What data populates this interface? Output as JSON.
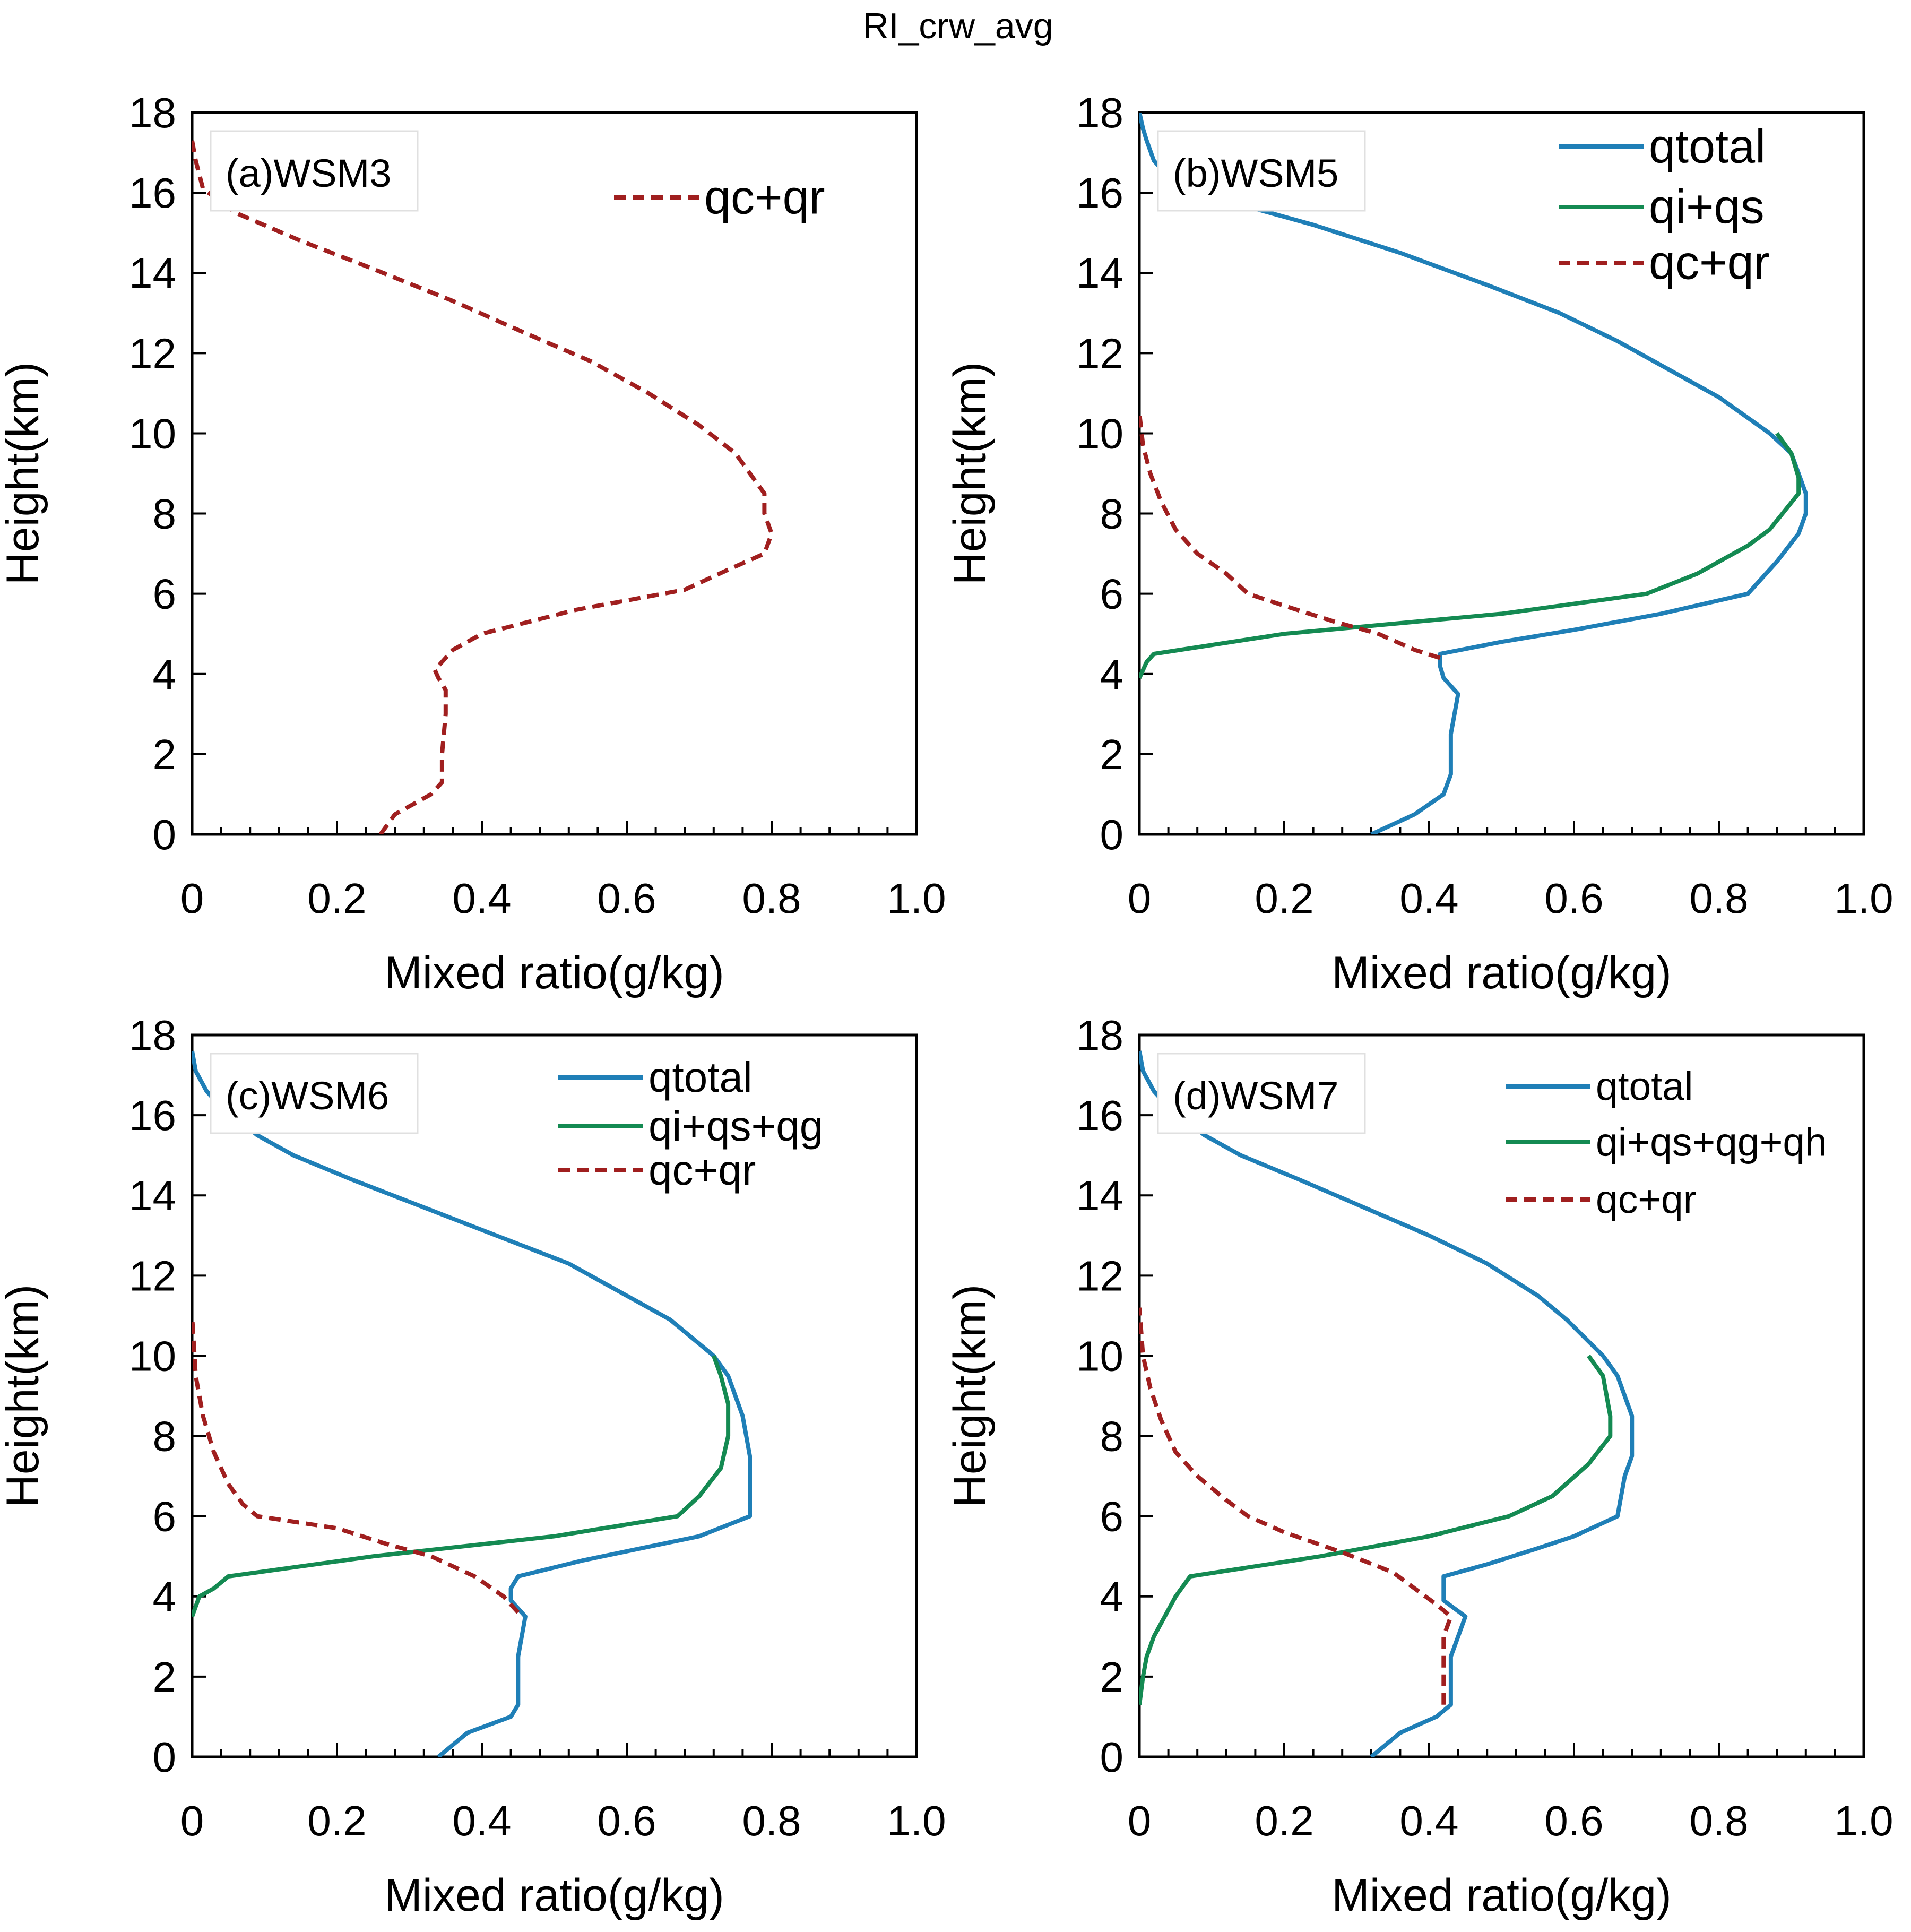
{
  "figure": {
    "title": "RI_crw_avg"
  },
  "colors": {
    "qtotal": "#1f7fb7",
    "ice": "#148a52",
    "liquid": "#a01f1f",
    "axis": "#000000"
  },
  "chart_data": [
    {
      "type": "line",
      "panel_label": "(a)WSM3",
      "xlabel": "Mixed ratio(g/kg)",
      "ylabel": "Height(km)",
      "xlim": [
        0,
        1.0
      ],
      "ylim": [
        0,
        18
      ],
      "xticks": [
        "0",
        "0.2",
        "0.4",
        "0.6",
        "0.8",
        "1.0"
      ],
      "yticks": [
        "0",
        "2",
        "4",
        "6",
        "8",
        "10",
        "12",
        "14",
        "16",
        "18"
      ],
      "legend_position": "top-right",
      "legend_font": 90,
      "series": [
        {
          "name": "qc+qr",
          "style": "dashed",
          "color_key": "liquid",
          "points": [
            [
              0.26,
              0
            ],
            [
              0.28,
              0.5
            ],
            [
              0.33,
              1.0
            ],
            [
              0.345,
              1.3
            ],
            [
              0.345,
              2
            ],
            [
              0.35,
              3
            ],
            [
              0.35,
              3.6
            ],
            [
              0.34,
              3.9
            ],
            [
              0.335,
              4.1
            ],
            [
              0.36,
              4.6
            ],
            [
              0.4,
              5.0
            ],
            [
              0.53,
              5.6
            ],
            [
              0.68,
              6.1
            ],
            [
              0.74,
              6.6
            ],
            [
              0.79,
              7.0
            ],
            [
              0.8,
              7.5
            ],
            [
              0.79,
              8
            ],
            [
              0.79,
              8.5
            ],
            [
              0.75,
              9.5
            ],
            [
              0.7,
              10.2
            ],
            [
              0.63,
              11.0
            ],
            [
              0.55,
              11.8
            ],
            [
              0.46,
              12.5
            ],
            [
              0.36,
              13.3
            ],
            [
              0.25,
              14.1
            ],
            [
              0.15,
              14.8
            ],
            [
              0.06,
              15.5
            ],
            [
              0.015,
              16.1
            ],
            [
              0.005,
              16.8
            ],
            [
              0,
              17.3
            ]
          ]
        }
      ]
    },
    {
      "type": "line",
      "panel_label": "(b)WSM5",
      "xlabel": "Mixed ratio(g/kg)",
      "ylabel": "Height(km)",
      "xlim": [
        0,
        1.0
      ],
      "ylim": [
        0,
        18
      ],
      "xticks": [
        "0",
        "0.2",
        "0.4",
        "0.6",
        "0.8",
        "1.0"
      ],
      "yticks": [
        "0",
        "2",
        "4",
        "6",
        "8",
        "10",
        "12",
        "14",
        "16",
        "18"
      ],
      "legend_position": "top-right",
      "legend_font": 90,
      "series": [
        {
          "name": "qtotal",
          "style": "solid",
          "color_key": "qtotal",
          "points": [
            [
              0.32,
              0
            ],
            [
              0.38,
              0.5
            ],
            [
              0.42,
              1.0
            ],
            [
              0.43,
              1.5
            ],
            [
              0.43,
              2
            ],
            [
              0.43,
              2.5
            ],
            [
              0.44,
              3.5
            ],
            [
              0.42,
              3.9
            ],
            [
              0.415,
              4.2
            ],
            [
              0.415,
              4.5
            ],
            [
              0.5,
              4.8
            ],
            [
              0.6,
              5.1
            ],
            [
              0.72,
              5.5
            ],
            [
              0.84,
              6.0
            ],
            [
              0.88,
              6.8
            ],
            [
              0.91,
              7.5
            ],
            [
              0.92,
              8
            ],
            [
              0.92,
              8.5
            ],
            [
              0.9,
              9.5
            ],
            [
              0.87,
              10
            ],
            [
              0.8,
              10.9
            ],
            [
              0.74,
              11.5
            ],
            [
              0.66,
              12.3
            ],
            [
              0.58,
              13.0
            ],
            [
              0.48,
              13.7
            ],
            [
              0.36,
              14.5
            ],
            [
              0.24,
              15.2
            ],
            [
              0.12,
              15.8
            ],
            [
              0.04,
              16.4
            ],
            [
              0.02,
              16.8
            ],
            [
              0.01,
              17.3
            ],
            [
              0.005,
              17.6
            ],
            [
              0,
              18
            ]
          ]
        },
        {
          "name": "qi+qs",
          "style": "solid",
          "color_key": "ice",
          "points": [
            [
              0,
              3.9
            ],
            [
              0.01,
              4.3
            ],
            [
              0.02,
              4.5
            ],
            [
              0.2,
              5.0
            ],
            [
              0.5,
              5.5
            ],
            [
              0.7,
              6.0
            ],
            [
              0.77,
              6.5
            ],
            [
              0.84,
              7.2
            ],
            [
              0.87,
              7.6
            ],
            [
              0.91,
              8.5
            ],
            [
              0.91,
              8.9
            ],
            [
              0.9,
              9.5
            ],
            [
              0.88,
              10
            ]
          ]
        },
        {
          "name": "qc+qr",
          "style": "dashed",
          "color_key": "liquid",
          "points": [
            [
              0.415,
              4.4
            ],
            [
              0.38,
              4.6
            ],
            [
              0.33,
              5.0
            ],
            [
              0.27,
              5.3
            ],
            [
              0.2,
              5.7
            ],
            [
              0.15,
              6.0
            ],
            [
              0.12,
              6.5
            ],
            [
              0.08,
              7.0
            ],
            [
              0.05,
              7.6
            ],
            [
              0.03,
              8.3
            ],
            [
              0.015,
              9.0
            ],
            [
              0.005,
              9.7
            ],
            [
              0,
              10.5
            ]
          ]
        }
      ]
    },
    {
      "type": "line",
      "panel_label": "(c)WSM6",
      "xlabel": "Mixed ratio(g/kg)",
      "ylabel": "Height(km)",
      "xlim": [
        0,
        1.0
      ],
      "ylim": [
        0,
        18
      ],
      "xticks": [
        "0",
        "0.2",
        "0.4",
        "0.6",
        "0.8",
        "1.0"
      ],
      "yticks": [
        "0",
        "2",
        "4",
        "6",
        "8",
        "10",
        "12",
        "14",
        "16",
        "18"
      ],
      "legend_position": "top-right",
      "legend_font": 80,
      "series": [
        {
          "name": "qtotal",
          "style": "solid",
          "color_key": "qtotal",
          "points": [
            [
              0.34,
              0
            ],
            [
              0.38,
              0.6
            ],
            [
              0.44,
              1.0
            ],
            [
              0.45,
              1.3
            ],
            [
              0.45,
              2
            ],
            [
              0.45,
              2.5
            ],
            [
              0.46,
              3.5
            ],
            [
              0.44,
              3.9
            ],
            [
              0.44,
              4.2
            ],
            [
              0.45,
              4.5
            ],
            [
              0.54,
              4.9
            ],
            [
              0.62,
              5.2
            ],
            [
              0.7,
              5.5
            ],
            [
              0.77,
              6.0
            ],
            [
              0.77,
              7.5
            ],
            [
              0.76,
              8.5
            ],
            [
              0.74,
              9.5
            ],
            [
              0.72,
              10
            ],
            [
              0.66,
              10.9
            ],
            [
              0.6,
              11.5
            ],
            [
              0.52,
              12.3
            ],
            [
              0.42,
              13.0
            ],
            [
              0.32,
              13.7
            ],
            [
              0.22,
              14.4
            ],
            [
              0.14,
              15.0
            ],
            [
              0.09,
              15.5
            ],
            [
              0.07,
              15.8
            ],
            [
              0.04,
              16.2
            ],
            [
              0.02,
              16.6
            ],
            [
              0.005,
              17.1
            ],
            [
              0,
              17.6
            ]
          ]
        },
        {
          "name": "qi+qs+qg",
          "style": "solid",
          "color_key": "ice",
          "points": [
            [
              0,
              3.5
            ],
            [
              0.01,
              4.0
            ],
            [
              0.03,
              4.2
            ],
            [
              0.05,
              4.5
            ],
            [
              0.25,
              5.0
            ],
            [
              0.5,
              5.5
            ],
            [
              0.67,
              6.0
            ],
            [
              0.7,
              6.5
            ],
            [
              0.73,
              7.2
            ],
            [
              0.74,
              8.0
            ],
            [
              0.74,
              8.8
            ],
            [
              0.73,
              9.5
            ],
            [
              0.72,
              10
            ]
          ]
        },
        {
          "name": "qc+qr",
          "style": "dashed",
          "color_key": "liquid",
          "points": [
            [
              0.45,
              3.6
            ],
            [
              0.43,
              4.0
            ],
            [
              0.39,
              4.5
            ],
            [
              0.33,
              5.0
            ],
            [
              0.27,
              5.3
            ],
            [
              0.2,
              5.7
            ],
            [
              0.09,
              6.0
            ],
            [
              0.07,
              6.3
            ],
            [
              0.05,
              6.8
            ],
            [
              0.03,
              7.6
            ],
            [
              0.015,
              8.5
            ],
            [
              0.005,
              9.5
            ],
            [
              0,
              11
            ]
          ]
        }
      ]
    },
    {
      "type": "line",
      "panel_label": "(d)WSM7",
      "xlabel": "Mixed ratio(g/kg)",
      "ylabel": "Height(km)",
      "xlim": [
        0,
        1.0
      ],
      "ylim": [
        0,
        18
      ],
      "xticks": [
        "0",
        "0.2",
        "0.4",
        "0.6",
        "0.8",
        "1.0"
      ],
      "yticks": [
        "0",
        "2",
        "4",
        "6",
        "8",
        "10",
        "12",
        "14",
        "16",
        "18"
      ],
      "legend_position": "top-right",
      "legend_font": 75,
      "series": [
        {
          "name": "qtotal",
          "style": "solid",
          "color_key": "qtotal",
          "points": [
            [
              0.32,
              0
            ],
            [
              0.36,
              0.6
            ],
            [
              0.41,
              1.0
            ],
            [
              0.43,
              1.3
            ],
            [
              0.43,
              2
            ],
            [
              0.43,
              2.5
            ],
            [
              0.45,
              3.5
            ],
            [
              0.42,
              3.9
            ],
            [
              0.42,
              4.2
            ],
            [
              0.42,
              4.5
            ],
            [
              0.48,
              4.8
            ],
            [
              0.55,
              5.2
            ],
            [
              0.6,
              5.5
            ],
            [
              0.66,
              6.0
            ],
            [
              0.67,
              7.0
            ],
            [
              0.68,
              7.5
            ],
            [
              0.68,
              8.5
            ],
            [
              0.66,
              9.5
            ],
            [
              0.64,
              10
            ],
            [
              0.59,
              10.9
            ],
            [
              0.55,
              11.5
            ],
            [
              0.48,
              12.3
            ],
            [
              0.4,
              13.0
            ],
            [
              0.31,
              13.7
            ],
            [
              0.22,
              14.4
            ],
            [
              0.14,
              15.0
            ],
            [
              0.09,
              15.5
            ],
            [
              0.07,
              15.8
            ],
            [
              0.04,
              16.2
            ],
            [
              0.02,
              16.6
            ],
            [
              0.005,
              17.1
            ],
            [
              0,
              17.6
            ]
          ]
        },
        {
          "name": "qi+qs+qg+qh",
          "style": "solid",
          "color_key": "ice",
          "points": [
            [
              0,
              1.3
            ],
            [
              0.005,
              2.0
            ],
            [
              0.01,
              2.5
            ],
            [
              0.02,
              3.0
            ],
            [
              0.035,
              3.5
            ],
            [
              0.05,
              4.0
            ],
            [
              0.07,
              4.5
            ],
            [
              0.25,
              5.0
            ],
            [
              0.4,
              5.5
            ],
            [
              0.51,
              6.0
            ],
            [
              0.57,
              6.5
            ],
            [
              0.62,
              7.3
            ],
            [
              0.65,
              8.0
            ],
            [
              0.65,
              8.5
            ],
            [
              0.64,
              9.5
            ],
            [
              0.62,
              10
            ]
          ]
        },
        {
          "name": "qc+qr",
          "style": "dashed",
          "color_key": "liquid",
          "points": [
            [
              0.42,
              1.3
            ],
            [
              0.42,
              2
            ],
            [
              0.42,
              3.0
            ],
            [
              0.43,
              3.5
            ],
            [
              0.41,
              3.8
            ],
            [
              0.38,
              4.2
            ],
            [
              0.35,
              4.6
            ],
            [
              0.28,
              5.1
            ],
            [
              0.2,
              5.6
            ],
            [
              0.15,
              6.0
            ],
            [
              0.12,
              6.4
            ],
            [
              0.08,
              7.0
            ],
            [
              0.05,
              7.6
            ],
            [
              0.03,
              8.4
            ],
            [
              0.015,
              9.2
            ],
            [
              0.005,
              10.0
            ],
            [
              0,
              11.2
            ]
          ]
        }
      ]
    }
  ]
}
